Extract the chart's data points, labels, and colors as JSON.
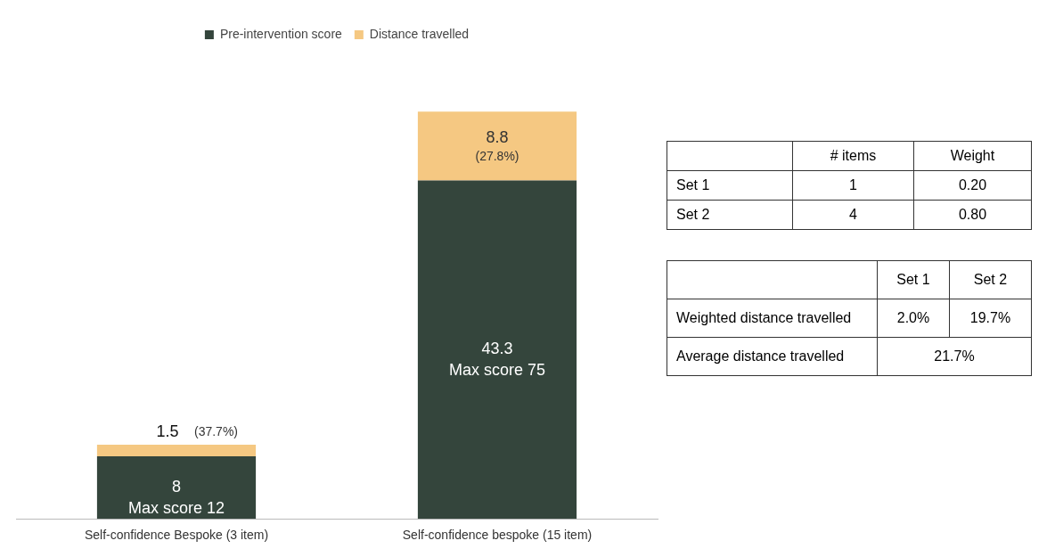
{
  "chart_data": [
    {
      "type": "bar",
      "stacked": true,
      "legend": "top",
      "categories": [
        "Self-confidence Bespoke (3 item)",
        "Self-confidence bespoke (15 item)"
      ],
      "series": [
        {
          "name": "Pre-intervention score",
          "color": "#34453c",
          "values": [
            8,
            43.3
          ],
          "value_labels": [
            "8",
            "43.3"
          ]
        },
        {
          "name": "Distance travelled",
          "color": "#f5c882",
          "values": [
            1.5,
            8.8
          ],
          "value_labels": [
            "1.5",
            "8.8"
          ]
        }
      ],
      "annotations": [
        "Max score 12",
        "Max score 75",
        "(37.7%)",
        "(27.8%)"
      ]
    },
    {
      "type": "other",
      "annotations": [
        "# items",
        "Weight",
        "Set 1",
        "1",
        "0.20",
        "Set 2",
        "4",
        "0.80",
        "Set 1",
        "Set 2",
        "Weighted distance travelled",
        "2.0%",
        "19.7%",
        "Average distance travelled",
        "21.7%"
      ]
    }
  ]
}
